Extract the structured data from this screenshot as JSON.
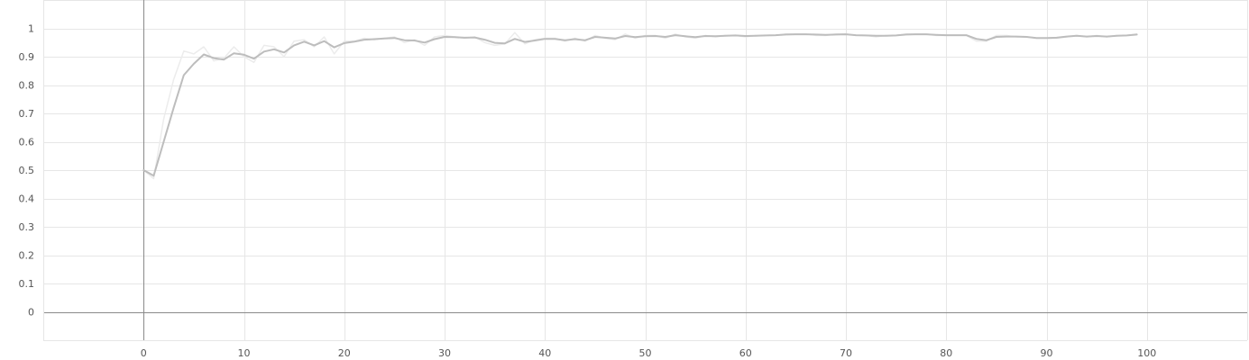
{
  "chart_data": {
    "type": "line",
    "title": "",
    "xlabel": "",
    "ylabel": "",
    "xlim": [
      -10,
      110
    ],
    "ylim": [
      -0.1,
      1.1
    ],
    "x_ticks": [
      0,
      10,
      20,
      30,
      40,
      50,
      60,
      70,
      80,
      90,
      100
    ],
    "y_ticks": [
      0,
      0.1,
      0.2,
      0.3,
      0.4,
      0.5,
      0.6,
      0.7,
      0.8,
      0.9,
      1
    ],
    "grid": true,
    "legend": "none",
    "series": [
      {
        "style": "raw",
        "color": "#ececec",
        "x": [
          0,
          1,
          2,
          3,
          4,
          5,
          6,
          7,
          8,
          9,
          10,
          11,
          12,
          13,
          14,
          15,
          16,
          17,
          18,
          19,
          20,
          21,
          22,
          23,
          24,
          25,
          26,
          27,
          28,
          29,
          30,
          31,
          32,
          33,
          34,
          35,
          36,
          37,
          38,
          39,
          40,
          41,
          42,
          43,
          44,
          45,
          46,
          47,
          48,
          49,
          50,
          51,
          52,
          53,
          54,
          55,
          56,
          57,
          58,
          59,
          60,
          61,
          62,
          63,
          64,
          65,
          66,
          67,
          68,
          69,
          70,
          71,
          72,
          73,
          74,
          75,
          76,
          77,
          78,
          79,
          80,
          81,
          82,
          83,
          84,
          85,
          86,
          87,
          88,
          89,
          90,
          91,
          92,
          93,
          94,
          95,
          96,
          97,
          98,
          99
        ],
        "values": [
          0.5,
          0.47,
          0.68,
          0.82,
          0.92,
          0.91,
          0.935,
          0.885,
          0.895,
          0.935,
          0.9,
          0.88,
          0.94,
          0.935,
          0.9,
          0.955,
          0.96,
          0.935,
          0.97,
          0.91,
          0.955,
          0.955,
          0.965,
          0.96,
          0.965,
          0.97,
          0.95,
          0.96,
          0.94,
          0.97,
          0.975,
          0.97,
          0.965,
          0.97,
          0.95,
          0.94,
          0.945,
          0.985,
          0.945,
          0.96,
          0.965,
          0.965,
          0.955,
          0.965,
          0.955,
          0.975,
          0.965,
          0.96,
          0.98,
          0.965,
          0.975,
          0.975,
          0.965,
          0.98,
          0.97,
          0.965,
          0.975,
          0.97,
          0.975,
          0.975,
          0.97,
          0.975,
          0.975,
          0.975,
          0.98,
          0.98,
          0.98,
          0.975,
          0.975,
          0.98,
          0.98,
          0.975,
          0.975,
          0.97,
          0.975,
          0.975,
          0.98,
          0.98,
          0.98,
          0.975,
          0.975,
          0.975,
          0.975,
          0.955,
          0.955,
          0.975,
          0.975,
          0.97,
          0.97,
          0.965,
          0.965,
          0.965,
          0.97,
          0.975,
          0.97,
          0.975,
          0.97,
          0.975,
          0.975,
          0.98
        ]
      },
      {
        "style": "smoothed",
        "color": "#bdbdbd",
        "x": [
          0,
          1,
          2,
          3,
          4,
          5,
          6,
          7,
          8,
          9,
          10,
          11,
          12,
          13,
          14,
          15,
          16,
          17,
          18,
          19,
          20,
          21,
          22,
          23,
          24,
          25,
          26,
          27,
          28,
          29,
          30,
          31,
          32,
          33,
          34,
          35,
          36,
          37,
          38,
          39,
          40,
          41,
          42,
          43,
          44,
          45,
          46,
          47,
          48,
          49,
          50,
          51,
          52,
          53,
          54,
          55,
          56,
          57,
          58,
          59,
          60,
          61,
          62,
          63,
          64,
          65,
          66,
          67,
          68,
          69,
          70,
          71,
          72,
          73,
          74,
          75,
          76,
          77,
          78,
          79,
          80,
          81,
          82,
          83,
          84,
          85,
          86,
          87,
          88,
          89,
          90,
          91,
          92,
          93,
          94,
          95,
          96,
          97,
          98,
          99
        ],
        "values": [
          0.5,
          0.48,
          0.6,
          0.72,
          0.835,
          0.875,
          0.908,
          0.895,
          0.89,
          0.912,
          0.907,
          0.893,
          0.918,
          0.926,
          0.915,
          0.94,
          0.953,
          0.94,
          0.955,
          0.933,
          0.948,
          0.953,
          0.96,
          0.962,
          0.964,
          0.966,
          0.958,
          0.957,
          0.95,
          0.962,
          0.97,
          0.969,
          0.967,
          0.968,
          0.96,
          0.949,
          0.947,
          0.963,
          0.952,
          0.957,
          0.963,
          0.963,
          0.958,
          0.962,
          0.958,
          0.97,
          0.967,
          0.964,
          0.973,
          0.969,
          0.972,
          0.973,
          0.97,
          0.976,
          0.972,
          0.969,
          0.973,
          0.972,
          0.974,
          0.975,
          0.973,
          0.974,
          0.975,
          0.976,
          0.978,
          0.979,
          0.979,
          0.978,
          0.977,
          0.978,
          0.979,
          0.976,
          0.975,
          0.974,
          0.974,
          0.975,
          0.978,
          0.979,
          0.979,
          0.977,
          0.976,
          0.976,
          0.976,
          0.963,
          0.958,
          0.97,
          0.971,
          0.971,
          0.97,
          0.966,
          0.966,
          0.967,
          0.971,
          0.974,
          0.971,
          0.973,
          0.971,
          0.974,
          0.975,
          0.978
        ]
      }
    ]
  }
}
